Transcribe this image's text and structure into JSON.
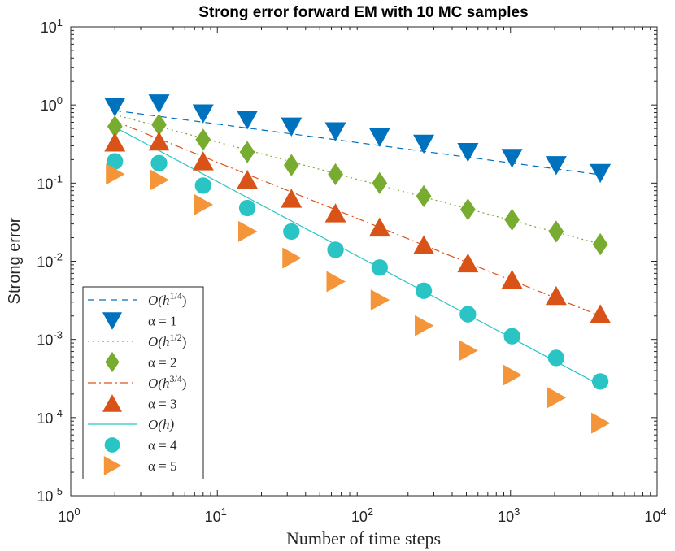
{
  "chart_data": {
    "type": "scatter",
    "title": "Strong error forward EM with 10 MC samples",
    "xlabel": "Number of time steps",
    "ylabel": "Strong error",
    "xscale": "log",
    "yscale": "log",
    "xlim": [
      1,
      10000
    ],
    "ylim": [
      1e-05,
      10
    ],
    "x_ticks": [
      {
        "value": 1,
        "base": "10",
        "exp": "0"
      },
      {
        "value": 10,
        "base": "10",
        "exp": "1"
      },
      {
        "value": 100,
        "base": "10",
        "exp": "2"
      },
      {
        "value": 1000,
        "base": "10",
        "exp": "3"
      },
      {
        "value": 10000,
        "base": "10",
        "exp": "4"
      }
    ],
    "y_ticks": [
      {
        "value": 1e-05,
        "base": "10",
        "exp": "-5"
      },
      {
        "value": 0.0001,
        "base": "10",
        "exp": "-4"
      },
      {
        "value": 0.001,
        "base": "10",
        "exp": "-3"
      },
      {
        "value": 0.01,
        "base": "10",
        "exp": "-2"
      },
      {
        "value": 0.1,
        "base": "10",
        "exp": "-1"
      },
      {
        "value": 1,
        "base": "10",
        "exp": "0"
      },
      {
        "value": 10,
        "base": "10",
        "exp": "1"
      }
    ],
    "x": [
      2,
      4,
      8,
      16,
      32,
      64,
      128,
      256,
      512,
      1024,
      2048,
      4096
    ],
    "reference_lines": [
      {
        "name": "O(h^{1/4})",
        "label_base": "O(h",
        "label_sup": "1/4",
        "label_end": ")",
        "color": "#0072BD",
        "dash": "8,6",
        "x": [
          2,
          4096
        ],
        "y": [
          0.85,
          0.128
        ]
      },
      {
        "name": "O(h^{1/2})",
        "label_base": "O(h",
        "label_sup": "1/2",
        "label_end": ")",
        "color": "#77AC30",
        "dash": "2,4",
        "x": [
          2,
          4096
        ],
        "y": [
          0.75,
          0.0166
        ]
      },
      {
        "name": "O(h^{3/4})",
        "label_base": "O(h",
        "label_sup": "3/4",
        "label_end": ")",
        "color": "#D95319",
        "dash": "10,4,2,4",
        "x": [
          2,
          4096
        ],
        "y": [
          0.62,
          0.002
        ]
      },
      {
        "name": "O(h)",
        "label_base": "O(h)",
        "label_sup": "",
        "label_end": "",
        "color": "#2BC4C4",
        "dash": "",
        "x": [
          2,
          4096
        ],
        "y": [
          0.52,
          0.00026
        ]
      }
    ],
    "series": [
      {
        "name": "alpha = 1",
        "label": "α = 1",
        "marker": "triangle-down",
        "color": "#0072BD",
        "values": [
          0.95,
          1.05,
          0.78,
          0.65,
          0.53,
          0.46,
          0.39,
          0.32,
          0.25,
          0.21,
          0.17,
          0.135
        ]
      },
      {
        "name": "alpha = 2",
        "label": "α = 2",
        "marker": "diamond",
        "color": "#77AC30",
        "values": [
          0.53,
          0.56,
          0.36,
          0.25,
          0.17,
          0.13,
          0.1,
          0.068,
          0.046,
          0.034,
          0.024,
          0.0165
        ]
      },
      {
        "name": "alpha = 3",
        "label": "α = 3",
        "marker": "triangle-up",
        "color": "#D95319",
        "values": [
          0.33,
          0.34,
          0.19,
          0.11,
          0.063,
          0.041,
          0.027,
          0.016,
          0.0094,
          0.0058,
          0.0036,
          0.0021
        ]
      },
      {
        "name": "alpha = 4",
        "label": "α = 4",
        "marker": "circle",
        "color": "#2BC4C4",
        "values": [
          0.19,
          0.18,
          0.093,
          0.048,
          0.024,
          0.014,
          0.0083,
          0.0042,
          0.0021,
          0.0011,
          0.00058,
          0.00029
        ]
      },
      {
        "name": "alpha = 5",
        "label": "α = 5",
        "marker": "triangle-right",
        "color": "#F39538",
        "values": [
          0.13,
          0.11,
          0.053,
          0.024,
          0.011,
          0.0055,
          0.0032,
          0.0015,
          0.00072,
          0.00035,
          0.00018,
          8.5e-05
        ]
      }
    ],
    "legend_order": [
      {
        "kind": "line",
        "ref": 0
      },
      {
        "kind": "marker",
        "ref": 0
      },
      {
        "kind": "line",
        "ref": 1
      },
      {
        "kind": "marker",
        "ref": 1
      },
      {
        "kind": "line",
        "ref": 2
      },
      {
        "kind": "marker",
        "ref": 2
      },
      {
        "kind": "line",
        "ref": 3
      },
      {
        "kind": "marker",
        "ref": 3
      },
      {
        "kind": "marker",
        "ref": 4
      }
    ],
    "legend_position": "bottom-left",
    "grid": false
  }
}
